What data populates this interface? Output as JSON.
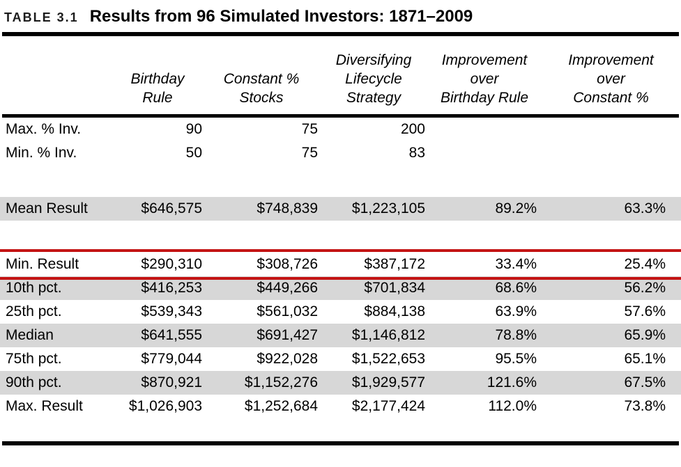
{
  "caption": {
    "label": "TABLE 3.1",
    "title": "Results from 96 Simulated Investors: 1871–2009"
  },
  "colors": {
    "row_shade": "#d7d7d7",
    "highlight": "#c41414",
    "rule": "#000000"
  },
  "table": {
    "columns": [
      {
        "name": "row-label",
        "lines": []
      },
      {
        "name": "birthday-rule",
        "lines": [
          "Birthday",
          "Rule"
        ]
      },
      {
        "name": "constant-pct-stocks",
        "lines": [
          "Constant %",
          "Stocks"
        ]
      },
      {
        "name": "diversifying-lifecycle-strategy",
        "lines": [
          "Diversifying",
          "Lifecycle",
          "Strategy"
        ]
      },
      {
        "name": "improvement-over-birthday-rule",
        "lines": [
          "Improvement",
          "over",
          "Birthday Rule"
        ]
      },
      {
        "name": "improvement-over-constant-pct",
        "lines": [
          "Improvement",
          "over",
          "Constant %"
        ]
      }
    ],
    "rows": [
      {
        "label": "Max. % Inv.",
        "values": [
          "90",
          "75",
          "200",
          "",
          ""
        ],
        "shaded": false,
        "highlighted": false,
        "gap_after": false
      },
      {
        "label": "Min. % Inv.",
        "values": [
          "50",
          "75",
          "83",
          "",
          ""
        ],
        "shaded": false,
        "highlighted": false,
        "gap_after": true
      },
      {
        "label": "Mean Result",
        "values": [
          "$646,575",
          "$748,839",
          "$1,223,105",
          "89.2%",
          "63.3%"
        ],
        "shaded": true,
        "highlighted": false,
        "gap_after": true
      },
      {
        "label": "Min. Result",
        "values": [
          "$290,310",
          "$308,726",
          "$387,172",
          "33.4%",
          "25.4%"
        ],
        "shaded": false,
        "highlighted": true,
        "gap_after": false
      },
      {
        "label": "10th pct.",
        "values": [
          "$416,253",
          "$449,266",
          "$701,834",
          "68.6%",
          "56.2%"
        ],
        "shaded": true,
        "highlighted": false,
        "gap_after": false
      },
      {
        "label": "25th pct.",
        "values": [
          "$539,343",
          "$561,032",
          "$884,138",
          "63.9%",
          "57.6%"
        ],
        "shaded": false,
        "highlighted": false,
        "gap_after": false
      },
      {
        "label": "Median",
        "values": [
          "$641,555",
          "$691,427",
          "$1,146,812",
          "78.8%",
          "65.9%"
        ],
        "shaded": true,
        "highlighted": false,
        "gap_after": false
      },
      {
        "label": "75th pct.",
        "values": [
          "$779,044",
          "$922,028",
          "$1,522,653",
          "95.5%",
          "65.1%"
        ],
        "shaded": false,
        "highlighted": false,
        "gap_after": false
      },
      {
        "label": "90th pct.",
        "values": [
          "$870,921",
          "$1,152,276",
          "$1,929,577",
          "121.6%",
          "67.5%"
        ],
        "shaded": true,
        "highlighted": false,
        "gap_after": false
      },
      {
        "label": "Max. Result",
        "values": [
          "$1,026,903",
          "$1,252,684",
          "$2,177,424",
          "112.0%",
          "73.8%"
        ],
        "shaded": false,
        "highlighted": false,
        "gap_after": false
      }
    ]
  }
}
